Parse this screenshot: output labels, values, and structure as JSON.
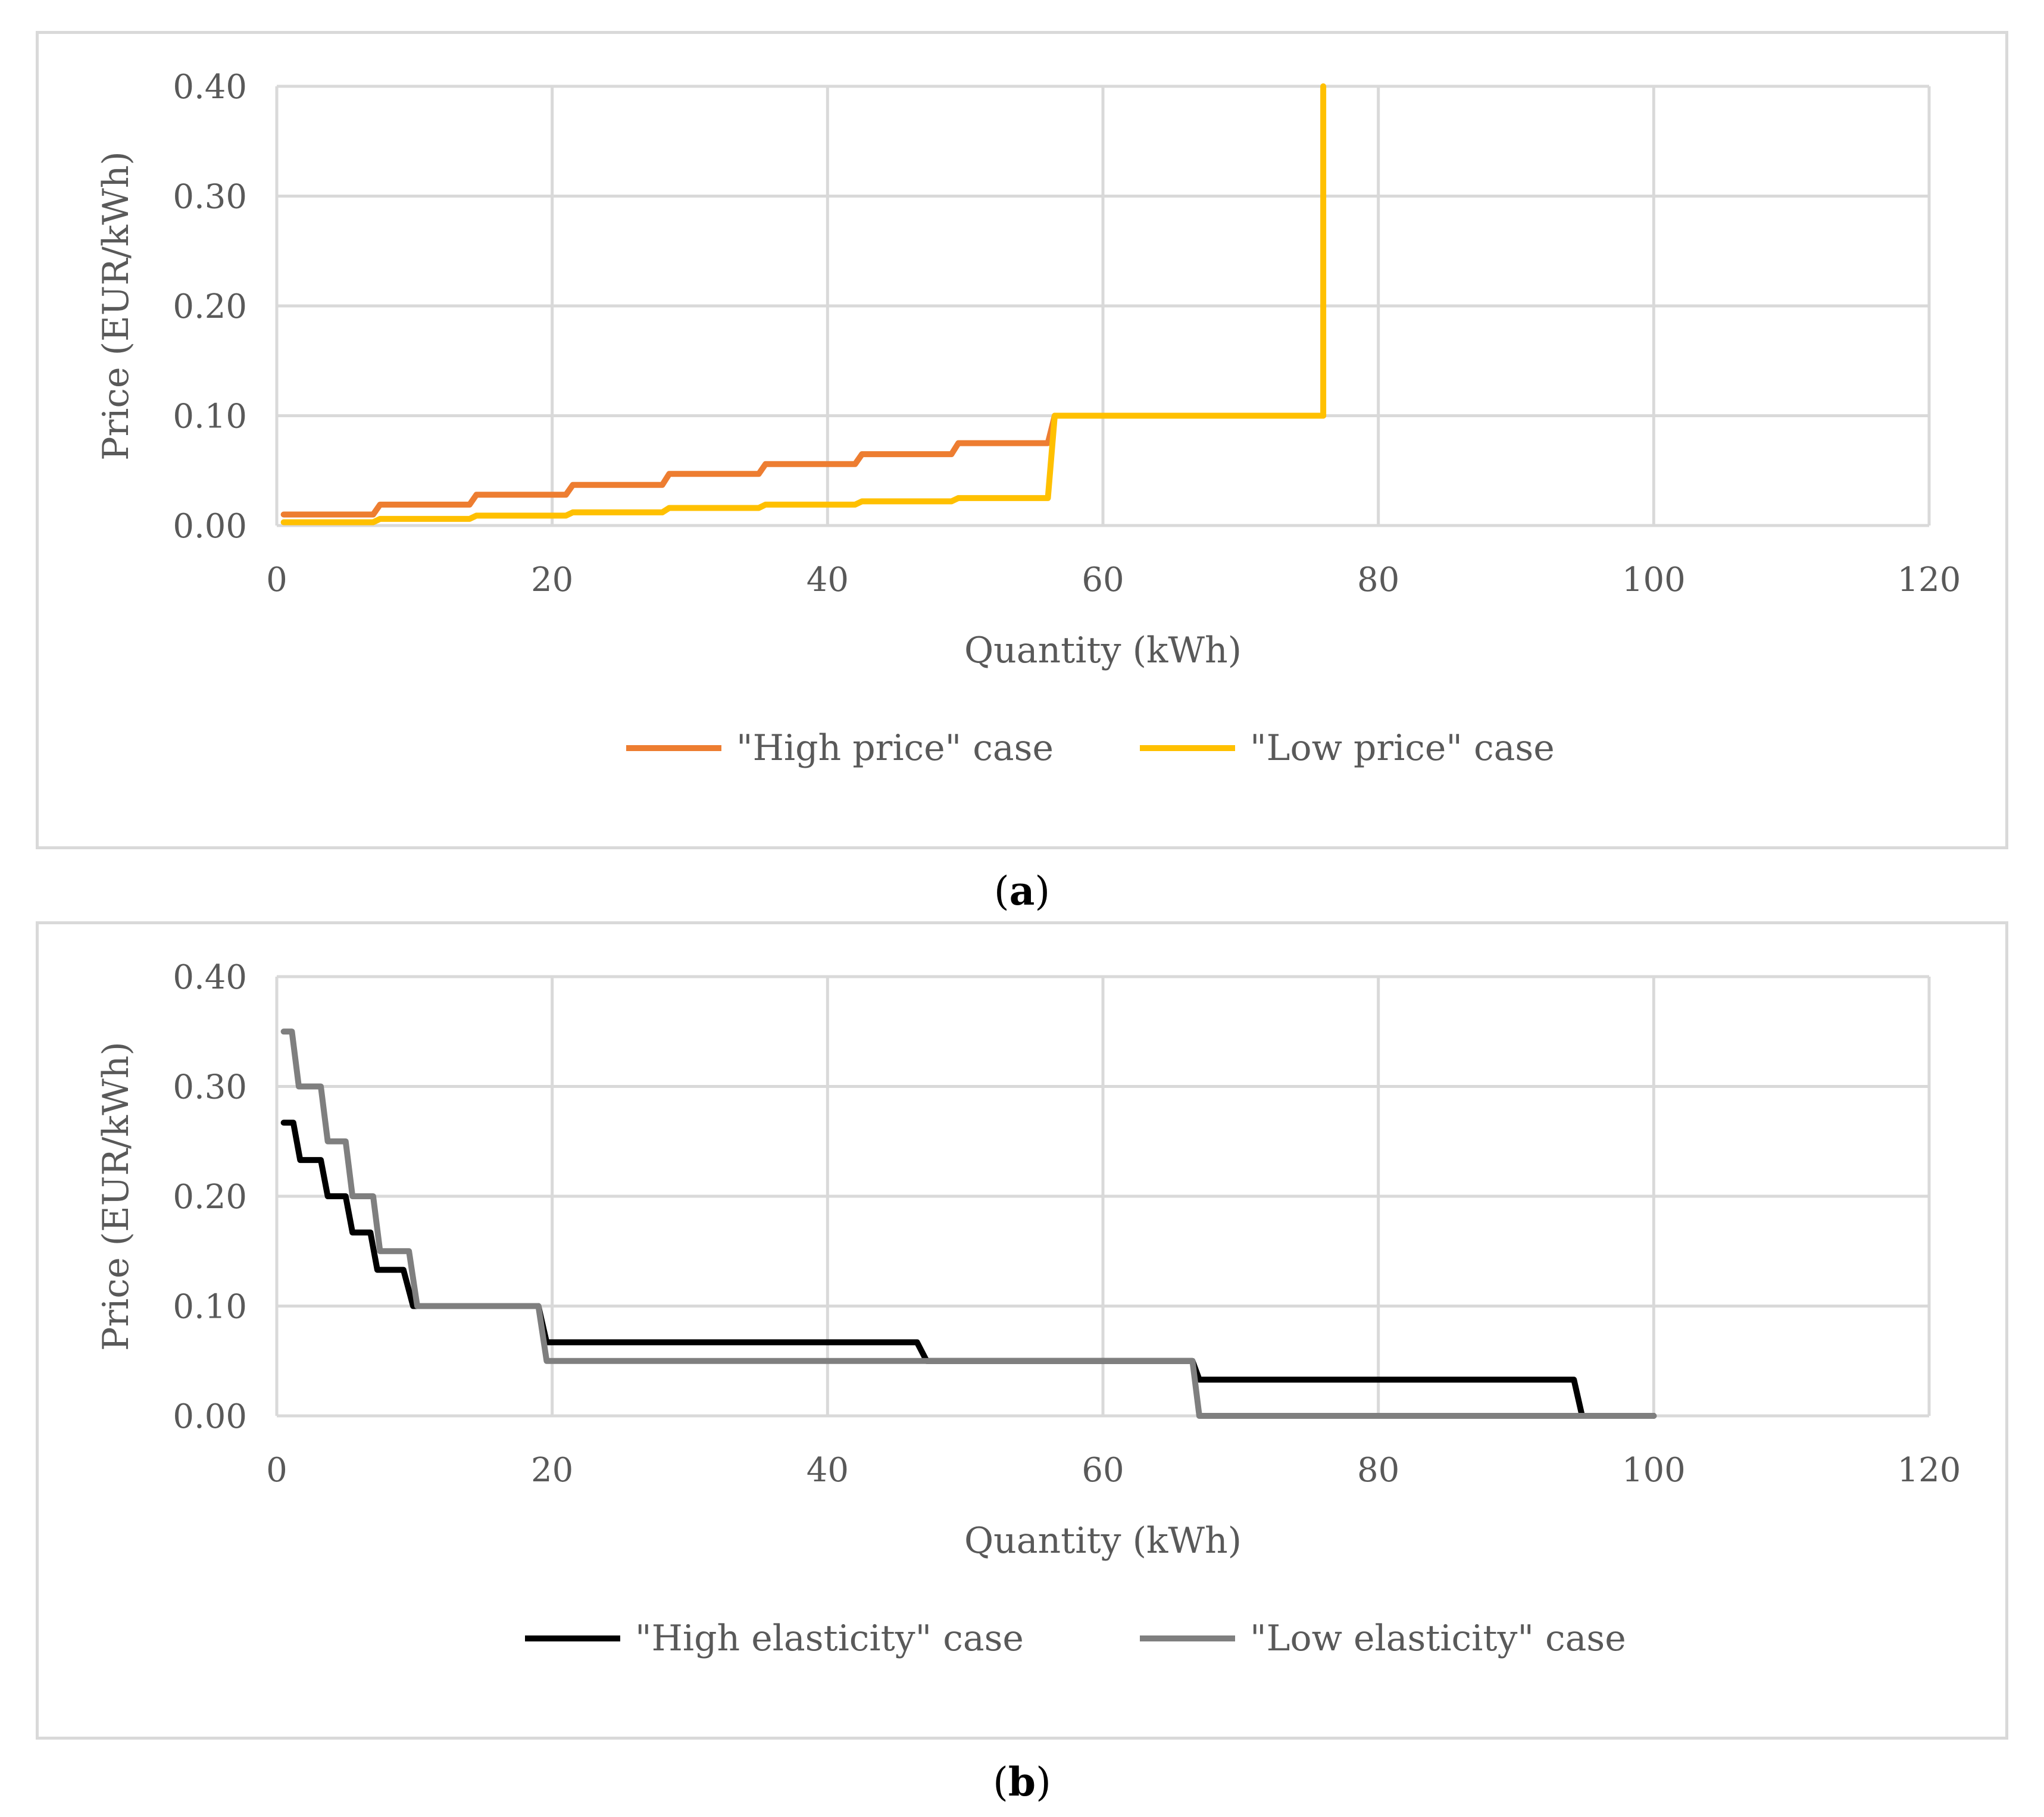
{
  "chart_data": [
    {
      "id": "a",
      "type": "line",
      "caption_label": "a",
      "xlabel": "Quantity (kWh)",
      "ylabel": "Price (EUR/kWh)",
      "xlim": [
        0,
        120
      ],
      "ylim": [
        0,
        0.4
      ],
      "xticks": [
        "0",
        "20",
        "40",
        "60",
        "80",
        "100",
        "120"
      ],
      "yticks": [
        "0.00",
        "0.10",
        "0.20",
        "0.30",
        "0.40"
      ],
      "grid": true,
      "legend_position": "bottom",
      "series": [
        {
          "name": "\"High price\" case",
          "color": "#ED7D31",
          "points": [
            [
              0.5,
              0.01
            ],
            [
              7,
              0.01
            ],
            [
              7.5,
              0.019
            ],
            [
              14,
              0.019
            ],
            [
              14.5,
              0.028
            ],
            [
              21,
              0.028
            ],
            [
              21.5,
              0.037
            ],
            [
              28,
              0.037
            ],
            [
              28.5,
              0.047
            ],
            [
              35,
              0.047
            ],
            [
              35.5,
              0.056
            ],
            [
              42,
              0.056
            ],
            [
              42.5,
              0.065
            ],
            [
              49,
              0.065
            ],
            [
              49.5,
              0.075
            ],
            [
              56,
              0.075
            ],
            [
              56.5,
              0.1
            ],
            [
              76,
              0.1
            ]
          ]
        },
        {
          "name": "\"Low price\" case",
          "color": "#FFC000",
          "points": [
            [
              0.5,
              0.003
            ],
            [
              7,
              0.003
            ],
            [
              7.5,
              0.006
            ],
            [
              14,
              0.006
            ],
            [
              14.5,
              0.009
            ],
            [
              21,
              0.009
            ],
            [
              21.5,
              0.012
            ],
            [
              28,
              0.012
            ],
            [
              28.5,
              0.016
            ],
            [
              35,
              0.016
            ],
            [
              35.5,
              0.019
            ],
            [
              42,
              0.019
            ],
            [
              42.5,
              0.022
            ],
            [
              49,
              0.022
            ],
            [
              49.5,
              0.025
            ],
            [
              56,
              0.025
            ],
            [
              56.5,
              0.1
            ],
            [
              76,
              0.1
            ],
            [
              76,
              0.4
            ]
          ]
        }
      ]
    },
    {
      "id": "b",
      "type": "line",
      "caption_label": "b",
      "xlabel": "Quantity (kWh)",
      "ylabel": "Price (EUR/kWh)",
      "xlim": [
        0,
        120
      ],
      "ylim": [
        0,
        0.4
      ],
      "xticks": [
        "0",
        "20",
        "40",
        "60",
        "80",
        "100",
        "120"
      ],
      "yticks": [
        "0.00",
        "0.10",
        "0.20",
        "0.30",
        "0.40"
      ],
      "grid": true,
      "legend_position": "bottom",
      "series": [
        {
          "name": "\"High elasticity\" case",
          "color": "#000000",
          "points": [
            [
              0.5,
              0.267
            ],
            [
              1.2,
              0.267
            ],
            [
              1.7,
              0.233
            ],
            [
              3.2,
              0.233
            ],
            [
              3.7,
              0.2
            ],
            [
              5.0,
              0.2
            ],
            [
              5.5,
              0.167
            ],
            [
              6.8,
              0.167
            ],
            [
              7.3,
              0.133
            ],
            [
              9.2,
              0.133
            ],
            [
              9.9,
              0.1
            ],
            [
              19.0,
              0.1
            ],
            [
              19.6,
              0.067
            ],
            [
              46.5,
              0.067
            ],
            [
              47.2,
              0.05
            ],
            [
              66.5,
              0.05
            ],
            [
              67.0,
              0.033
            ],
            [
              94.2,
              0.033
            ],
            [
              94.8,
              0.0
            ],
            [
              100,
              0.0
            ]
          ]
        },
        {
          "name": "\"Low elasticity\" case",
          "color": "#7F7F7F",
          "points": [
            [
              0.5,
              0.35
            ],
            [
              1.1,
              0.35
            ],
            [
              1.6,
              0.3
            ],
            [
              3.2,
              0.3
            ],
            [
              3.7,
              0.25
            ],
            [
              5.0,
              0.25
            ],
            [
              5.5,
              0.2
            ],
            [
              7.0,
              0.2
            ],
            [
              7.5,
              0.15
            ],
            [
              9.6,
              0.15
            ],
            [
              10.2,
              0.1
            ],
            [
              19.0,
              0.1
            ],
            [
              19.6,
              0.05
            ],
            [
              66.5,
              0.05
            ],
            [
              67.0,
              0.0
            ],
            [
              100,
              0.0
            ]
          ]
        }
      ]
    }
  ]
}
